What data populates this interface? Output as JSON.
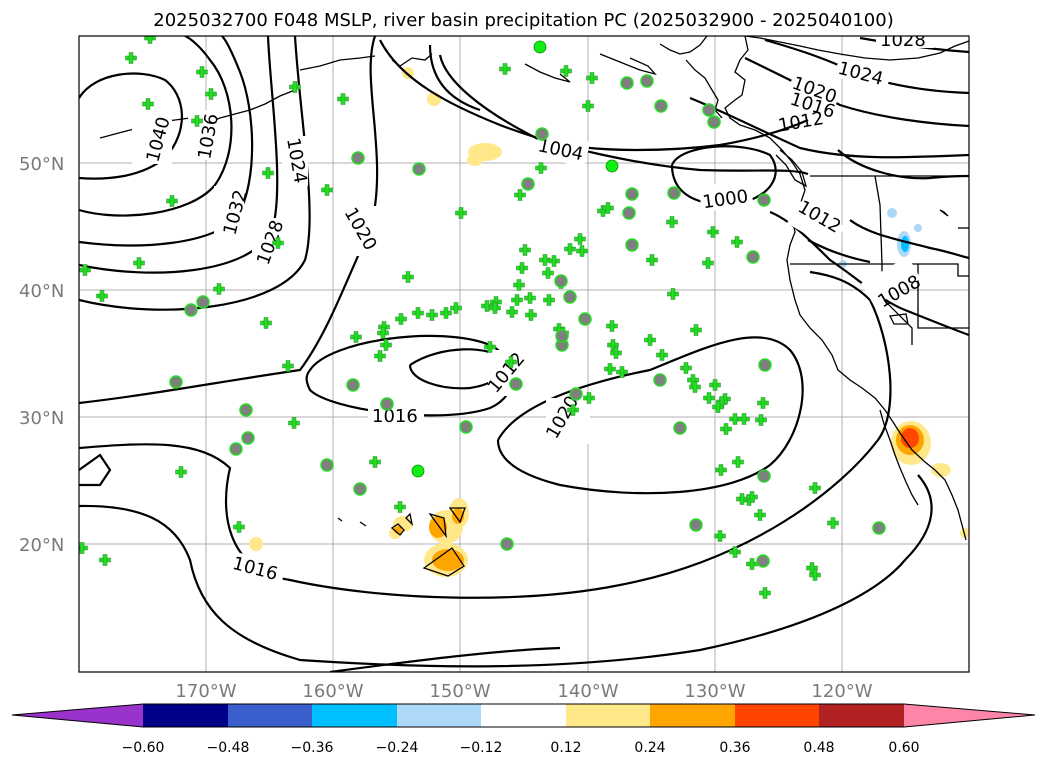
{
  "title": "2025032700 F048 MSLP, river basin precipitation PC (2025032900 - 2025040100)",
  "map": {
    "projection": "PlateCarree",
    "lon_range": [
      -180,
      -110
    ],
    "lat_range": [
      10,
      60
    ],
    "latitude_ticks": [
      "50°N",
      "40°N",
      "30°N",
      "20°N"
    ],
    "longitude_ticks": [
      "170°W",
      "160°W",
      "150°W",
      "140°W",
      "130°W",
      "120°W"
    ],
    "gridlines": true,
    "isobar_labels": [
      "1028",
      "1024",
      "1020",
      "1016",
      "1012",
      "1040",
      "1036",
      "1024",
      "1032",
      "1028",
      "1020",
      "1004",
      "1000",
      "1012",
      "1008",
      "1012",
      "1016",
      "1020",
      "1016"
    ],
    "station_marker_colors": {
      "cross": "#22dd22",
      "circle_fill": "#7f7f7f",
      "circle_edge": "#22dd22",
      "bright_dot": "#11ee11"
    }
  },
  "colorbar": {
    "colors": [
      "#9933cc",
      "#000088",
      "#3a5fcd",
      "#00bfff",
      "#add8f8",
      "#ffffff",
      "#ffe88a",
      "#ffa500",
      "#ff4500",
      "#b22222",
      "#ff85a8"
    ],
    "tick_labels": [
      "−0.60",
      "−0.48",
      "−0.36",
      "−0.24",
      "−0.12",
      "0.12",
      "0.24",
      "0.36",
      "0.48",
      "0.60"
    ],
    "extend": "both"
  }
}
